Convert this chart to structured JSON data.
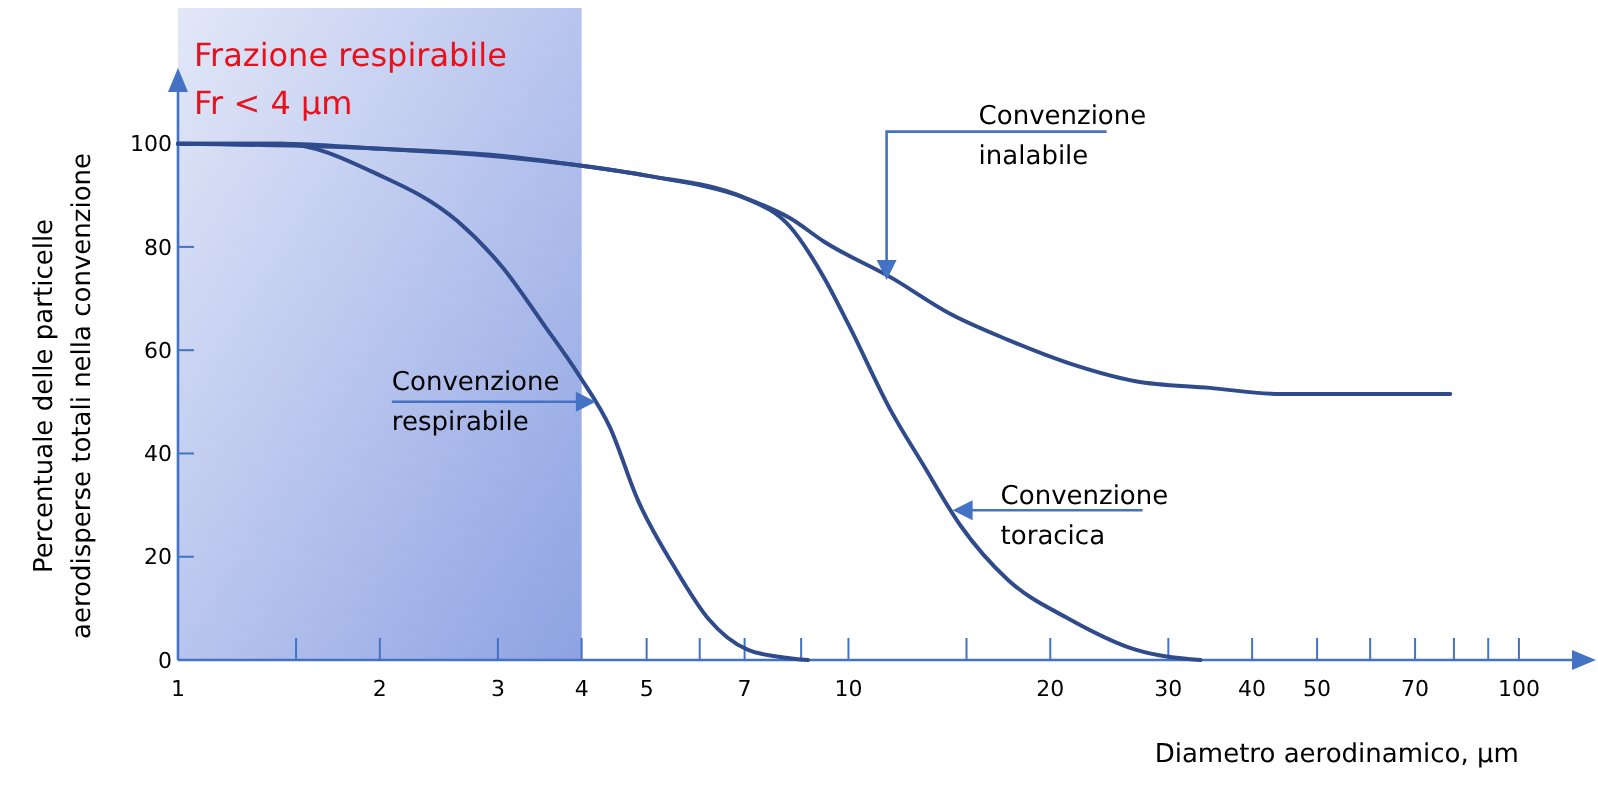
{
  "chart_data": {
    "type": "line",
    "xlabel": "Diametro aerodinamico, µm",
    "ylabel": "Percentuale delle particelle\naerodisperse totali nella convenzione",
    "log": "x",
    "xlim": [
      1,
      120
    ],
    "ylim": [
      0,
      110
    ],
    "xticks": [
      1,
      {
        "value": 1.5,
        "label": null
      },
      2,
      3,
      4,
      5,
      {
        "value": 6,
        "label": null
      },
      7,
      {
        "value": 8.5,
        "label": null
      },
      10,
      {
        "value": 15,
        "label": null
      },
      20,
      30,
      40,
      50,
      {
        "value": 60,
        "label": null
      },
      70,
      {
        "value": 80,
        "label": null
      },
      {
        "value": 90,
        "label": null
      },
      100
    ],
    "yticks": [
      0,
      20,
      40,
      60,
      80,
      100
    ],
    "series": [
      {
        "color": "#2f4b8c",
        "x": [
          1,
          1.43,
          2,
          3,
          4,
          5,
          7,
          8.2,
          9.2,
          11.6,
          14.2,
          17.3,
          21.3,
          26.8,
          34.6,
          44.2,
          55,
          79
        ],
        "values": [
          100,
          100,
          99,
          97.7,
          95.7,
          93.8,
          89.5,
          85.5,
          81,
          74,
          67,
          62,
          57.5,
          54,
          52.7,
          51.5,
          51.5,
          51.5
        ]
      },
      {
        "color": "#2f4b8c",
        "x": [
          1,
          2,
          3,
          4,
          5,
          7,
          8.17,
          9.2,
          10,
          11.6,
          12.9,
          14.7,
          17.3,
          21.3,
          26.8,
          33.5
        ],
        "values": [
          100,
          99,
          97.5,
          95.7,
          93.8,
          89.5,
          84,
          74,
          65,
          48,
          38,
          26,
          15.5,
          8,
          2,
          0
        ]
      },
      {
        "color": "#2f4b8c",
        "x": [
          1,
          1.43,
          1.99,
          2.61,
          3.05,
          3.51,
          3.97,
          4.41,
          4.85,
          5.5,
          6.18,
          7.07,
          8,
          8.7
        ],
        "values": [
          100,
          100,
          94,
          85,
          76,
          65,
          55,
          45,
          31,
          18,
          8,
          2,
          0.5,
          0
        ]
      }
    ],
    "bands": [
      {
        "axis": "x",
        "from": 1,
        "to": 4,
        "label": "Frazione respirabile\nFr < 4 µm",
        "color": "#8ea2e3"
      }
    ],
    "annotations": [
      {
        "text": "Convenzione\ninalabile",
        "x": 11.4,
        "y": 73.6
      },
      {
        "text": "Convenzione\nrespirabile",
        "x": 4.2,
        "y": 50
      },
      {
        "text": "Convenzione\ntoracica",
        "x": 14.3,
        "y": 29
      }
    ]
  }
}
